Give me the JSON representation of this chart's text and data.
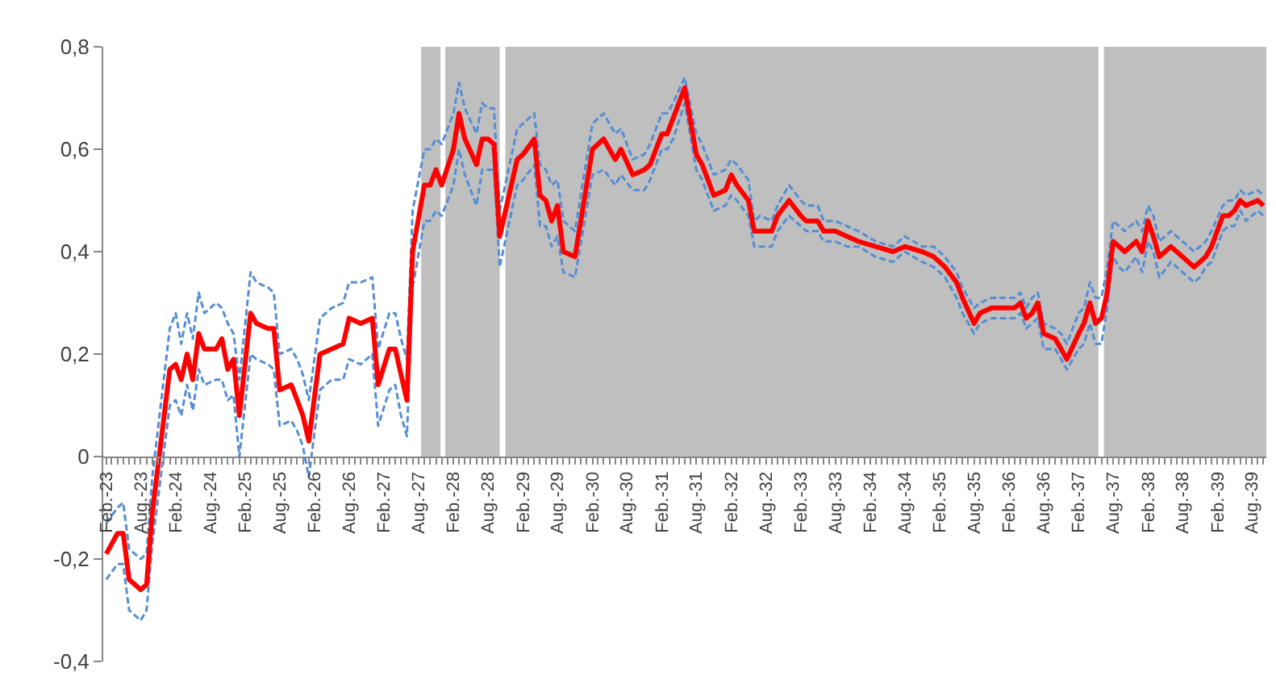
{
  "chart_data": {
    "type": "line",
    "x": [
      "1923-02",
      "1923-04",
      "1923-05",
      "1923-06",
      "1923-08",
      "1923-09",
      "1923-10",
      "1924-01",
      "1924-02",
      "1924-03",
      "1924-04",
      "1924-05",
      "1924-06",
      "1924-07",
      "1924-09",
      "1924-10",
      "1924-11",
      "1924-12",
      "1925-01",
      "1925-03",
      "1925-04",
      "1925-06",
      "1925-07",
      "1925-08",
      "1925-10",
      "1925-11",
      "1925-12",
      "1926-01",
      "1926-03",
      "1926-05",
      "1926-07",
      "1926-08",
      "1926-10",
      "1926-12",
      "1927-01",
      "1927-03",
      "1927-04",
      "1927-05",
      "1927-06",
      "1927-07",
      "1927-09",
      "1927-10",
      "1927-11",
      "1927-12",
      "1928-02",
      "1928-03",
      "1928-04",
      "1928-06",
      "1928-07",
      "1928-08",
      "1928-09",
      "1928-10",
      "1929-01",
      "1929-02",
      "1929-04",
      "1929-05",
      "1929-06",
      "1929-07",
      "1929-08",
      "1929-09",
      "1929-11",
      "1930-02",
      "1930-04",
      "1930-06",
      "1930-07",
      "1930-09",
      "1930-11",
      "1930-12",
      "1931-02",
      "1931-03",
      "1931-04",
      "1931-06",
      "1931-08",
      "1931-09",
      "1931-11",
      "1932-01",
      "1932-02",
      "1932-03",
      "1932-05",
      "1932-06",
      "1932-07",
      "1932-09",
      "1932-10",
      "1932-12",
      "1933-02",
      "1933-03",
      "1933-05",
      "1933-06",
      "1933-08",
      "1933-10",
      "1933-12",
      "1934-03",
      "1934-06",
      "1934-08",
      "1934-11",
      "1935-01",
      "1935-03",
      "1935-05",
      "1935-06",
      "1935-08",
      "1935-09",
      "1935-11",
      "1935-12",
      "1936-01",
      "1936-03",
      "1936-04",
      "1936-05",
      "1936-06",
      "1936-07",
      "1936-08",
      "1936-10",
      "1936-11",
      "1936-12",
      "1937-02",
      "1937-03",
      "1937-04",
      "1937-05",
      "1937-06",
      "1937-07",
      "1937-08",
      "1937-09",
      "1937-10",
      "1937-12",
      "1938-01",
      "1938-02",
      "1938-03",
      "1938-04",
      "1938-06",
      "1938-08",
      "1938-10",
      "1938-11",
      "1938-12",
      "1939-01",
      "1939-03",
      "1939-04",
      "1939-05",
      "1939-06",
      "1939-07",
      "1939-09",
      "1939-10"
    ],
    "series": [
      {
        "color": "#558ed5",
        "line_style": "dashed",
        "values": [
          -0.13,
          -0.1,
          -0.09,
          -0.18,
          -0.2,
          -0.19,
          -0.04,
          0.25,
          0.28,
          0.22,
          0.28,
          0.23,
          0.32,
          0.28,
          0.3,
          0.29,
          0.26,
          0.24,
          0.15,
          0.36,
          0.34,
          0.33,
          0.32,
          0.2,
          0.21,
          0.19,
          0.16,
          0.11,
          0.27,
          0.29,
          0.3,
          0.34,
          0.34,
          0.35,
          0.21,
          0.28,
          0.28,
          0.23,
          0.19,
          0.48,
          0.6,
          0.6,
          0.62,
          0.61,
          0.67,
          0.73,
          0.68,
          0.63,
          0.69,
          0.68,
          0.68,
          0.48,
          0.64,
          0.65,
          0.67,
          0.57,
          0.56,
          0.53,
          0.54,
          0.46,
          0.44,
          0.65,
          0.67,
          0.63,
          0.64,
          0.58,
          0.59,
          0.61,
          0.67,
          0.67,
          0.69,
          0.74,
          0.63,
          0.61,
          0.55,
          0.56,
          0.58,
          0.57,
          0.54,
          0.46,
          0.47,
          0.46,
          0.49,
          0.53,
          0.5,
          0.49,
          0.49,
          0.46,
          0.46,
          0.45,
          0.44,
          0.42,
          0.41,
          0.43,
          0.41,
          0.41,
          0.39,
          0.36,
          0.33,
          0.29,
          0.3,
          0.31,
          0.31,
          0.31,
          0.31,
          0.32,
          0.29,
          0.31,
          0.32,
          0.26,
          0.25,
          0.24,
          0.22,
          0.28,
          0.29,
          0.34,
          0.31,
          0.31,
          0.37,
          0.46,
          0.45,
          0.44,
          0.46,
          0.44,
          0.49,
          0.47,
          0.42,
          0.44,
          0.42,
          0.4,
          0.41,
          0.42,
          0.44,
          0.49,
          0.5,
          0.5,
          0.52,
          0.51,
          0.52,
          0.51
        ]
      },
      {
        "color": "#558ed5",
        "line_style": "dashed",
        "values": [
          -0.24,
          -0.21,
          -0.21,
          -0.3,
          -0.32,
          -0.3,
          -0.17,
          0.1,
          0.11,
          0.08,
          0.14,
          0.09,
          0.17,
          0.14,
          0.15,
          0.15,
          0.11,
          0.12,
          0.0,
          0.2,
          0.19,
          0.18,
          0.17,
          0.06,
          0.07,
          0.05,
          0.02,
          -0.04,
          0.13,
          0.15,
          0.15,
          0.19,
          0.18,
          0.2,
          0.06,
          0.13,
          0.14,
          0.08,
          0.04,
          0.33,
          0.46,
          0.46,
          0.48,
          0.47,
          0.53,
          0.6,
          0.55,
          0.49,
          0.56,
          0.56,
          0.56,
          0.37,
          0.53,
          0.54,
          0.57,
          0.45,
          0.45,
          0.41,
          0.43,
          0.36,
          0.35,
          0.55,
          0.56,
          0.53,
          0.55,
          0.52,
          0.52,
          0.54,
          0.6,
          0.6,
          0.62,
          0.69,
          0.56,
          0.54,
          0.48,
          0.49,
          0.51,
          0.5,
          0.47,
          0.41,
          0.41,
          0.41,
          0.44,
          0.47,
          0.45,
          0.44,
          0.44,
          0.42,
          0.42,
          0.41,
          0.41,
          0.39,
          0.38,
          0.4,
          0.38,
          0.37,
          0.35,
          0.31,
          0.28,
          0.24,
          0.26,
          0.27,
          0.27,
          0.27,
          0.27,
          0.28,
          0.25,
          0.26,
          0.27,
          0.21,
          0.21,
          0.19,
          0.17,
          0.21,
          0.22,
          0.26,
          0.22,
          0.22,
          0.29,
          0.39,
          0.37,
          0.36,
          0.39,
          0.36,
          0.42,
          0.4,
          0.35,
          0.38,
          0.36,
          0.34,
          0.35,
          0.37,
          0.38,
          0.44,
          0.45,
          0.45,
          0.48,
          0.46,
          0.48,
          0.47
        ]
      },
      {
        "color": "#ff0000",
        "line_style": "solid",
        "values": [
          -0.19,
          -0.15,
          -0.15,
          -0.24,
          -0.26,
          -0.25,
          -0.11,
          0.17,
          0.18,
          0.15,
          0.2,
          0.15,
          0.24,
          0.21,
          0.21,
          0.23,
          0.17,
          0.19,
          0.08,
          0.28,
          0.26,
          0.25,
          0.25,
          0.13,
          0.14,
          0.11,
          0.08,
          0.03,
          0.2,
          0.21,
          0.22,
          0.27,
          0.26,
          0.27,
          0.14,
          0.21,
          0.21,
          0.16,
          0.11,
          0.4,
          0.53,
          0.53,
          0.56,
          0.53,
          0.6,
          0.67,
          0.62,
          0.57,
          0.62,
          0.62,
          0.61,
          0.43,
          0.58,
          0.59,
          0.62,
          0.51,
          0.5,
          0.46,
          0.49,
          0.4,
          0.39,
          0.6,
          0.62,
          0.58,
          0.6,
          0.55,
          0.56,
          0.57,
          0.63,
          0.63,
          0.66,
          0.72,
          0.59,
          0.57,
          0.51,
          0.52,
          0.55,
          0.53,
          0.5,
          0.44,
          0.44,
          0.44,
          0.47,
          0.5,
          0.47,
          0.46,
          0.46,
          0.44,
          0.44,
          0.43,
          0.42,
          0.41,
          0.4,
          0.41,
          0.4,
          0.39,
          0.37,
          0.34,
          0.31,
          0.26,
          0.28,
          0.29,
          0.29,
          0.29,
          0.29,
          0.3,
          0.27,
          0.28,
          0.3,
          0.24,
          0.23,
          0.21,
          0.19,
          0.24,
          0.26,
          0.3,
          0.26,
          0.27,
          0.32,
          0.42,
          0.41,
          0.4,
          0.42,
          0.4,
          0.46,
          0.43,
          0.39,
          0.41,
          0.39,
          0.37,
          0.38,
          0.39,
          0.41,
          0.47,
          0.47,
          0.48,
          0.5,
          0.49,
          0.5,
          0.49
        ]
      }
    ],
    "xlim": [
      "1923-01-16",
      "1939-10-16"
    ],
    "xticks": [
      {
        "value": "1923-02",
        "label": "Feb.-23"
      },
      {
        "value": "1923-03",
        "label": null
      },
      {
        "value": "1923-04",
        "label": null
      },
      {
        "value": "1923-05",
        "label": null
      },
      {
        "value": "1923-06",
        "label": null
      },
      {
        "value": "1923-07",
        "label": null
      },
      {
        "value": "1923-08",
        "label": "Aug.-23"
      },
      {
        "value": "1923-09",
        "label": null
      },
      {
        "value": "1923-10",
        "label": null
      },
      {
        "value": "1923-11",
        "label": null
      },
      {
        "value": "1923-12",
        "label": null
      },
      {
        "value": "1924-01",
        "label": null
      },
      {
        "value": "1924-02",
        "label": "Feb.-24"
      },
      {
        "value": "1924-03",
        "label": null
      },
      {
        "value": "1924-04",
        "label": null
      },
      {
        "value": "1924-05",
        "label": null
      },
      {
        "value": "1924-06",
        "label": null
      },
      {
        "value": "1924-07",
        "label": null
      },
      {
        "value": "1924-08",
        "label": "Aug.-24"
      },
      {
        "value": "1924-09",
        "label": null
      },
      {
        "value": "1924-10",
        "label": null
      },
      {
        "value": "1924-11",
        "label": null
      },
      {
        "value": "1924-12",
        "label": null
      },
      {
        "value": "1925-01",
        "label": null
      },
      {
        "value": "1925-02",
        "label": "Feb.-25"
      },
      {
        "value": "1925-03",
        "label": null
      },
      {
        "value": "1925-04",
        "label": null
      },
      {
        "value": "1925-05",
        "label": null
      },
      {
        "value": "1925-06",
        "label": null
      },
      {
        "value": "1925-07",
        "label": null
      },
      {
        "value": "1925-08",
        "label": "Aug.-25"
      },
      {
        "value": "1925-09",
        "label": null
      },
      {
        "value": "1925-10",
        "label": null
      },
      {
        "value": "1925-11",
        "label": null
      },
      {
        "value": "1925-12",
        "label": null
      },
      {
        "value": "1926-01",
        "label": null
      },
      {
        "value": "1926-02",
        "label": "Feb.-26"
      },
      {
        "value": "1926-03",
        "label": null
      },
      {
        "value": "1926-04",
        "label": null
      },
      {
        "value": "1926-05",
        "label": null
      },
      {
        "value": "1926-06",
        "label": null
      },
      {
        "value": "1926-07",
        "label": null
      },
      {
        "value": "1926-08",
        "label": "Aug.-26"
      },
      {
        "value": "1926-09",
        "label": null
      },
      {
        "value": "1926-10",
        "label": null
      },
      {
        "value": "1926-11",
        "label": null
      },
      {
        "value": "1926-12",
        "label": null
      },
      {
        "value": "1927-01",
        "label": null
      },
      {
        "value": "1927-02",
        "label": "Feb.-27"
      },
      {
        "value": "1927-03",
        "label": null
      },
      {
        "value": "1927-04",
        "label": null
      },
      {
        "value": "1927-05",
        "label": null
      },
      {
        "value": "1927-06",
        "label": null
      },
      {
        "value": "1927-07",
        "label": null
      },
      {
        "value": "1927-08",
        "label": "Aug.-27"
      },
      {
        "value": "1927-09",
        "label": null
      },
      {
        "value": "1927-10",
        "label": null
      },
      {
        "value": "1927-11",
        "label": null
      },
      {
        "value": "1927-12",
        "label": null
      },
      {
        "value": "1928-01",
        "label": null
      },
      {
        "value": "1928-02",
        "label": "Feb.-28"
      },
      {
        "value": "1928-03",
        "label": null
      },
      {
        "value": "1928-04",
        "label": null
      },
      {
        "value": "1928-05",
        "label": null
      },
      {
        "value": "1928-06",
        "label": null
      },
      {
        "value": "1928-07",
        "label": null
      },
      {
        "value": "1928-08",
        "label": "Aug.-28"
      },
      {
        "value": "1928-09",
        "label": null
      },
      {
        "value": "1928-10",
        "label": null
      },
      {
        "value": "1928-11",
        "label": null
      },
      {
        "value": "1928-12",
        "label": null
      },
      {
        "value": "1929-01",
        "label": null
      },
      {
        "value": "1929-02",
        "label": "Feb.-29"
      },
      {
        "value": "1929-03",
        "label": null
      },
      {
        "value": "1929-04",
        "label": null
      },
      {
        "value": "1929-05",
        "label": null
      },
      {
        "value": "1929-06",
        "label": null
      },
      {
        "value": "1929-07",
        "label": null
      },
      {
        "value": "1929-08",
        "label": "Aug.-29"
      },
      {
        "value": "1929-09",
        "label": null
      },
      {
        "value": "1929-10",
        "label": null
      },
      {
        "value": "1929-11",
        "label": null
      },
      {
        "value": "1929-12",
        "label": null
      },
      {
        "value": "1930-01",
        "label": null
      },
      {
        "value": "1930-02",
        "label": "Feb.-30"
      },
      {
        "value": "1930-03",
        "label": null
      },
      {
        "value": "1930-04",
        "label": null
      },
      {
        "value": "1930-05",
        "label": null
      },
      {
        "value": "1930-06",
        "label": null
      },
      {
        "value": "1930-07",
        "label": null
      },
      {
        "value": "1930-08",
        "label": "Aug.-30"
      },
      {
        "value": "1930-09",
        "label": null
      },
      {
        "value": "1930-10",
        "label": null
      },
      {
        "value": "1930-11",
        "label": null
      },
      {
        "value": "1930-12",
        "label": null
      },
      {
        "value": "1931-01",
        "label": null
      },
      {
        "value": "1931-02",
        "label": "Feb.-31"
      },
      {
        "value": "1931-03",
        "label": null
      },
      {
        "value": "1931-04",
        "label": null
      },
      {
        "value": "1931-05",
        "label": null
      },
      {
        "value": "1931-06",
        "label": null
      },
      {
        "value": "1931-07",
        "label": null
      },
      {
        "value": "1931-08",
        "label": "Aug.-31"
      },
      {
        "value": "1931-09",
        "label": null
      },
      {
        "value": "1931-10",
        "label": null
      },
      {
        "value": "1931-11",
        "label": null
      },
      {
        "value": "1931-12",
        "label": null
      },
      {
        "value": "1932-01",
        "label": null
      },
      {
        "value": "1932-02",
        "label": "Feb.-32"
      },
      {
        "value": "1932-03",
        "label": null
      },
      {
        "value": "1932-04",
        "label": null
      },
      {
        "value": "1932-05",
        "label": null
      },
      {
        "value": "1932-06",
        "label": null
      },
      {
        "value": "1932-07",
        "label": null
      },
      {
        "value": "1932-08",
        "label": "Aug.-32"
      },
      {
        "value": "1932-09",
        "label": null
      },
      {
        "value": "1932-10",
        "label": null
      },
      {
        "value": "1932-11",
        "label": null
      },
      {
        "value": "1932-12",
        "label": null
      },
      {
        "value": "1933-01",
        "label": null
      },
      {
        "value": "1933-02",
        "label": "Feb.-33"
      },
      {
        "value": "1933-03",
        "label": null
      },
      {
        "value": "1933-04",
        "label": null
      },
      {
        "value": "1933-05",
        "label": null
      },
      {
        "value": "1933-06",
        "label": null
      },
      {
        "value": "1933-07",
        "label": null
      },
      {
        "value": "1933-08",
        "label": "Aug.-33"
      },
      {
        "value": "1933-09",
        "label": null
      },
      {
        "value": "1933-10",
        "label": null
      },
      {
        "value": "1933-11",
        "label": null
      },
      {
        "value": "1933-12",
        "label": null
      },
      {
        "value": "1934-01",
        "label": null
      },
      {
        "value": "1934-02",
        "label": "Feb.-34"
      },
      {
        "value": "1934-03",
        "label": null
      },
      {
        "value": "1934-04",
        "label": null
      },
      {
        "value": "1934-05",
        "label": null
      },
      {
        "value": "1934-06",
        "label": null
      },
      {
        "value": "1934-07",
        "label": null
      },
      {
        "value": "1934-08",
        "label": "Aug.-34"
      },
      {
        "value": "1934-09",
        "label": null
      },
      {
        "value": "1934-10",
        "label": null
      },
      {
        "value": "1934-11",
        "label": null
      },
      {
        "value": "1934-12",
        "label": null
      },
      {
        "value": "1935-01",
        "label": null
      },
      {
        "value": "1935-02",
        "label": "Feb.-35"
      },
      {
        "value": "1935-03",
        "label": null
      },
      {
        "value": "1935-04",
        "label": null
      },
      {
        "value": "1935-05",
        "label": null
      },
      {
        "value": "1935-06",
        "label": null
      },
      {
        "value": "1935-07",
        "label": null
      },
      {
        "value": "1935-08",
        "label": "Aug.-35"
      },
      {
        "value": "1935-09",
        "label": null
      },
      {
        "value": "1935-10",
        "label": null
      },
      {
        "value": "1935-11",
        "label": null
      },
      {
        "value": "1935-12",
        "label": null
      },
      {
        "value": "1936-01",
        "label": null
      },
      {
        "value": "1936-02",
        "label": "Feb.-36"
      },
      {
        "value": "1936-03",
        "label": null
      },
      {
        "value": "1936-04",
        "label": null
      },
      {
        "value": "1936-05",
        "label": null
      },
      {
        "value": "1936-06",
        "label": null
      },
      {
        "value": "1936-07",
        "label": null
      },
      {
        "value": "1936-08",
        "label": "Aug.-36"
      },
      {
        "value": "1936-09",
        "label": null
      },
      {
        "value": "1936-10",
        "label": null
      },
      {
        "value": "1936-11",
        "label": null
      },
      {
        "value": "1936-12",
        "label": null
      },
      {
        "value": "1937-01",
        "label": null
      },
      {
        "value": "1937-02",
        "label": "Feb.-37"
      },
      {
        "value": "1937-03",
        "label": null
      },
      {
        "value": "1937-04",
        "label": null
      },
      {
        "value": "1937-05",
        "label": null
      },
      {
        "value": "1937-06",
        "label": null
      },
      {
        "value": "1937-07",
        "label": null
      },
      {
        "value": "1937-08",
        "label": "Aug.-37"
      },
      {
        "value": "1937-09",
        "label": null
      },
      {
        "value": "1937-10",
        "label": null
      },
      {
        "value": "1937-11",
        "label": null
      },
      {
        "value": "1937-12",
        "label": null
      },
      {
        "value": "1938-01",
        "label": null
      },
      {
        "value": "1938-02",
        "label": "Feb.-38"
      },
      {
        "value": "1938-03",
        "label": null
      },
      {
        "value": "1938-04",
        "label": null
      },
      {
        "value": "1938-05",
        "label": null
      },
      {
        "value": "1938-06",
        "label": null
      },
      {
        "value": "1938-07",
        "label": null
      },
      {
        "value": "1938-08",
        "label": "Aug.-38"
      },
      {
        "value": "1938-09",
        "label": null
      },
      {
        "value": "1938-10",
        "label": null
      },
      {
        "value": "1938-11",
        "label": null
      },
      {
        "value": "1938-12",
        "label": null
      },
      {
        "value": "1939-01",
        "label": null
      },
      {
        "value": "1939-02",
        "label": "Feb.-39"
      },
      {
        "value": "1939-03",
        "label": null
      },
      {
        "value": "1939-04",
        "label": null
      },
      {
        "value": "1939-05",
        "label": null
      },
      {
        "value": "1939-06",
        "label": null
      },
      {
        "value": "1939-07",
        "label": null
      },
      {
        "value": "1939-08",
        "label": "Aug.-39"
      },
      {
        "value": "1939-09",
        "label": null
      },
      {
        "value": "1939-10",
        "label": null
      }
    ],
    "ylim": [
      -0.4,
      0.8
    ],
    "yticks": [
      {
        "value": -0.4,
        "label": "-0,4"
      },
      {
        "value": -0.2,
        "label": "-0,2"
      },
      0,
      {
        "value": 0.2,
        "label": "0,2"
      },
      {
        "value": 0.4,
        "label": "0,4"
      },
      {
        "value": 0.6,
        "label": "0,6"
      },
      {
        "value": 0.8,
        "label": "0,8"
      }
    ],
    "bands": [
      {
        "axis": "x",
        "from": "1927-08-15",
        "to": "1927-11-25",
        "color": "#bfbfbf"
      },
      {
        "axis": "x",
        "from": "1927-12-20",
        "to": "1928-10-01",
        "color": "#bfbfbf"
      },
      {
        "axis": "x",
        "from": "1928-10-31",
        "to": "1937-05-16",
        "color": "#bfbfbf"
      },
      {
        "axis": "x",
        "from": "1937-06-14",
        "to": "1939-10-16",
        "color": "#bfbfbf"
      }
    ]
  }
}
